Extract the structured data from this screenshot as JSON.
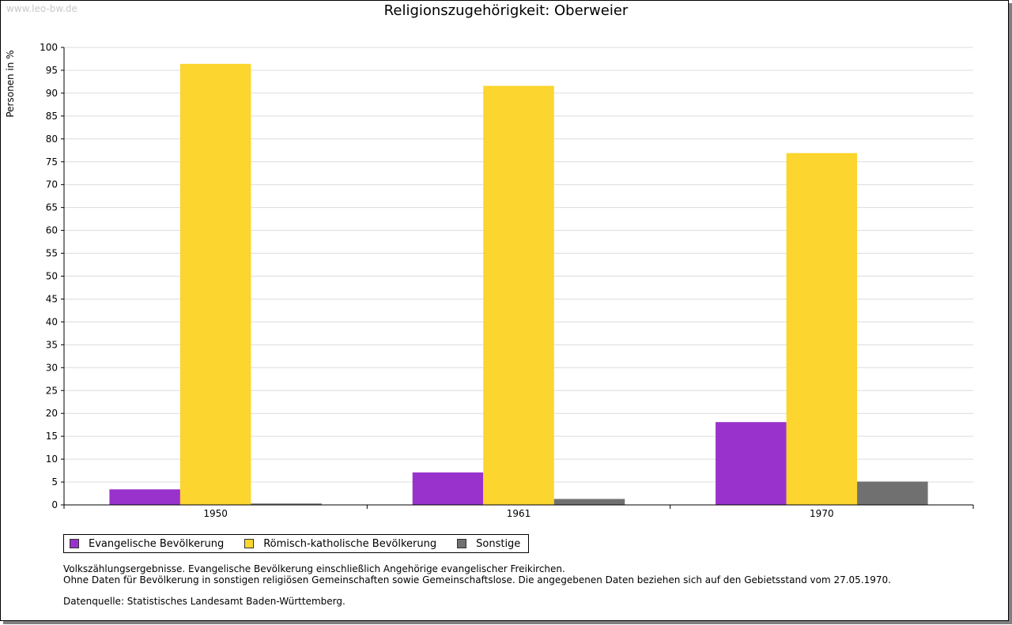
{
  "watermark": "www.leo-bw.de",
  "chart_data": {
    "type": "bar",
    "title": "Religionszugehörigkeit: Oberweier",
    "xlabel": "",
    "ylabel": "Personen in %",
    "ylim": [
      0,
      100
    ],
    "yticks": [
      "0",
      "5",
      "10",
      "15",
      "20",
      "25",
      "30",
      "35",
      "40",
      "45",
      "50",
      "55",
      "60",
      "65",
      "70",
      "75",
      "80",
      "85",
      "90",
      "95",
      "100"
    ],
    "categories": [
      "1950",
      "1961",
      "1970"
    ],
    "series": [
      {
        "name": "Evangelische Bevölkerung",
        "color": "#9932cc",
        "values": [
          3.4,
          7.1,
          18.1
        ]
      },
      {
        "name": "Römisch-katholische Bevölkerung",
        "color": "#fcd52e",
        "values": [
          96.4,
          91.6,
          76.9
        ]
      },
      {
        "name": "Sonstige",
        "color": "#707070",
        "values": [
          0.3,
          1.3,
          5.1
        ]
      }
    ],
    "grid": true,
    "legend_position": "bottom-left"
  },
  "notes": {
    "line1": "Volkszählungsergebnisse. Evangelische Bevölkerung einschließlich Angehörige evangelischer Freikirchen.",
    "line2": "Ohne Daten für Bevölkerung in sonstigen religiösen Gemeinschaften sowie Gemeinschaftslose. Die angegebenen Daten beziehen sich auf den Gebietsstand vom 27.05.1970.",
    "source": "Datenquelle: Statistisches Landesamt Baden-Württemberg."
  }
}
